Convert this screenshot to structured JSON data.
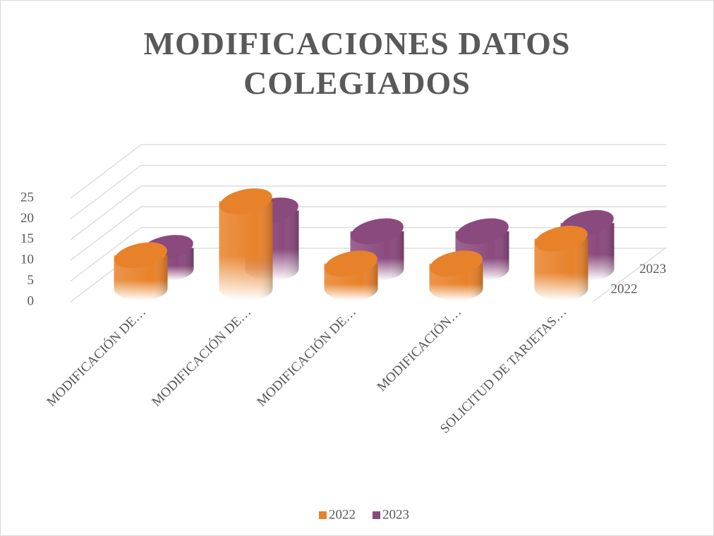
{
  "chart_data": {
    "type": "bar",
    "title": "MODIFICACIONES DATOS COLEGIADOS",
    "categories": [
      "MODIFICACIÓN DE…",
      "MODIFICACIÓN DE…",
      "MODIFICACIÓN DE…",
      "MODIFICACIÓN…",
      "SOLICITUD DE TARJETAS…"
    ],
    "series": [
      {
        "name": "2022",
        "color": "#e8822a",
        "values": [
          8,
          21,
          6,
          6,
          12
        ]
      },
      {
        "name": "2023",
        "color": "#8b4a7e",
        "values": [
          5,
          14,
          9,
          9,
          11
        ]
      }
    ],
    "ylim": [
      0,
      25
    ],
    "yticks": [
      0,
      5,
      10,
      15,
      20,
      25
    ],
    "grid": true,
    "legend": "bottom"
  }
}
